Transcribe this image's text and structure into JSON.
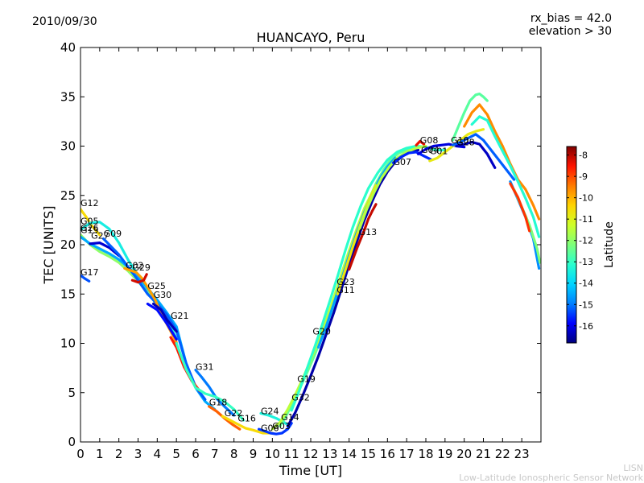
{
  "header": {
    "date": "2010/09/30",
    "rx_bias": "rx_bias = 42.0",
    "elevation": "elevation > 30"
  },
  "credit": {
    "short": "LISN",
    "long": "Low-Latitude Ionospheric Sensor Network"
  },
  "chart_data": {
    "type": "scatter",
    "title": "HUANCAYO, Peru",
    "xlabel": "Time [UT]",
    "ylabel": "TEC [UNITS]",
    "xlim": [
      0,
      24
    ],
    "ylim": [
      0,
      40
    ],
    "xticks": [
      0,
      1,
      2,
      3,
      4,
      5,
      6,
      7,
      8,
      9,
      10,
      11,
      12,
      13,
      14,
      15,
      16,
      17,
      18,
      19,
      20,
      21,
      22,
      23
    ],
    "yticks": [
      0,
      5,
      10,
      15,
      20,
      25,
      30,
      35,
      40
    ],
    "colorbar": {
      "label": "Latitude",
      "range": [
        -16.8,
        -7.6
      ],
      "ticks": [
        -8,
        -9,
        -10,
        -11,
        -12,
        -13,
        -14,
        -15,
        -16
      ],
      "colors": [
        "#00007f",
        "#0000ff",
        "#0080ff",
        "#00d4ff",
        "#29ffce",
        "#7dff7a",
        "#ceff29",
        "#ffd400",
        "#ff7b00",
        "#ff1300",
        "#7f0000"
      ]
    },
    "prn_labels": [
      {
        "prn": "G12",
        "time": 0.0,
        "tec": 23.9
      },
      {
        "prn": "G05",
        "time": 0.0,
        "tec": 22.1
      },
      {
        "prn": "G26",
        "time": 0.0,
        "tec": 21.4
      },
      {
        "prn": "G15",
        "time": 0.0,
        "tec": 21.2
      },
      {
        "prn": "G27",
        "time": 0.55,
        "tec": 20.6
      },
      {
        "prn": "G09",
        "time": 1.2,
        "tec": 20.8
      },
      {
        "prn": "G02",
        "time": 2.35,
        "tec": 17.6
      },
      {
        "prn": "G29",
        "time": 2.7,
        "tec": 17.4
      },
      {
        "prn": "G17",
        "time": 0.0,
        "tec": 16.9
      },
      {
        "prn": "G25",
        "time": 3.5,
        "tec": 15.5
      },
      {
        "prn": "G30",
        "time": 3.8,
        "tec": 14.6
      },
      {
        "prn": "G21",
        "time": 4.7,
        "tec": 12.5
      },
      {
        "prn": "G31",
        "time": 6.0,
        "tec": 7.3
      },
      {
        "prn": "G18",
        "time": 6.7,
        "tec": 3.7
      },
      {
        "prn": "G22",
        "time": 7.5,
        "tec": 2.6
      },
      {
        "prn": "G16",
        "time": 8.2,
        "tec": 2.1
      },
      {
        "prn": "G24",
        "time": 9.4,
        "tec": 2.8
      },
      {
        "prn": "G14",
        "time": 10.45,
        "tec": 2.2
      },
      {
        "prn": "G06",
        "time": 9.4,
        "tec": 1.1
      },
      {
        "prn": "G03",
        "time": 10.0,
        "tec": 1.3
      },
      {
        "prn": "G32",
        "time": 11.0,
        "tec": 4.2
      },
      {
        "prn": "G19",
        "time": 11.3,
        "tec": 6.1
      },
      {
        "prn": "G20",
        "time": 12.1,
        "tec": 10.9
      },
      {
        "prn": "G23",
        "time": 13.35,
        "tec": 15.9
      },
      {
        "prn": "G11",
        "time": 13.35,
        "tec": 15.1
      },
      {
        "prn": "G13",
        "time": 14.5,
        "tec": 21.0
      },
      {
        "prn": "G07",
        "time": 16.3,
        "tec": 28.1
      },
      {
        "prn": "G08",
        "time": 17.7,
        "tec": 30.3
      },
      {
        "prn": "G04",
        "time": 17.75,
        "tec": 29.3
      },
      {
        "prn": "G01",
        "time": 18.2,
        "tec": 29.2
      },
      {
        "prn": "G10",
        "time": 19.3,
        "tec": 30.3
      },
      {
        "prn": "G28",
        "time": 19.6,
        "tec": 30.1
      }
    ],
    "series": [
      {
        "name": "G12",
        "lat": -10.5,
        "x": [
          0.0,
          0.3,
          0.6,
          1.0
        ],
        "y": [
          23.6,
          22.8,
          21.9,
          21.0
        ]
      },
      {
        "name": "G05",
        "lat": -13.5,
        "x": [
          0.0,
          0.5,
          1.0,
          1.5,
          2.0,
          2.5,
          3.0,
          3.5,
          4.0,
          4.5,
          5.0
        ],
        "y": [
          21.5,
          22.2,
          22.3,
          21.6,
          20.2,
          18.4,
          16.9,
          15.4,
          14.0,
          12.5,
          10.5
        ]
      },
      {
        "name": "G26",
        "lat": -12.0,
        "x": [
          0.0,
          0.5,
          1.0,
          1.5,
          2.0,
          2.5,
          3.0,
          3.5,
          4.0,
          4.5,
          5.0
        ],
        "y": [
          21.0,
          20.0,
          19.3,
          18.8,
          18.2,
          17.3,
          16.3,
          15.1,
          13.9,
          12.8,
          11.4
        ]
      },
      {
        "name": "G15",
        "lat": -14.5,
        "x": [
          0.0,
          0.5,
          1.0,
          1.5,
          2.0,
          2.5,
          3.0,
          3.5,
          4.0,
          4.5,
          5.0,
          5.5,
          6.0,
          6.5,
          7.0
        ],
        "y": [
          20.8,
          20.1,
          19.6,
          19.1,
          18.5,
          17.7,
          16.8,
          15.6,
          14.4,
          13.1,
          11.7,
          8.0,
          5.5,
          4.1,
          3.3
        ]
      },
      {
        "name": "G27",
        "lat": -16.2,
        "x": [
          0.5,
          1.0,
          1.5,
          2.0
        ],
        "y": [
          20.1,
          20.2,
          19.7,
          18.9
        ]
      },
      {
        "name": "G09",
        "lat": -15.2,
        "x": [
          1.2,
          1.6,
          2.0,
          2.5,
          3.0,
          3.5,
          4.0,
          4.5,
          5.0,
          5.5,
          6.0,
          6.5
        ],
        "y": [
          20.6,
          19.8,
          19.0,
          17.7,
          16.4,
          15.0,
          14.0,
          12.9,
          11.3,
          8.0,
          5.6,
          4.3
        ]
      },
      {
        "name": "G02",
        "lat": -9.8,
        "x": [
          2.3,
          2.6,
          2.9,
          3.2,
          3.5,
          3.9,
          4.2,
          4.6,
          5.0
        ],
        "y": [
          17.6,
          17.4,
          17.2,
          16.6,
          15.7,
          14.4,
          13.0,
          11.6,
          10.1
        ]
      },
      {
        "name": "G29",
        "lat": -8.2,
        "x": [
          2.7,
          3.0,
          3.3,
          3.45
        ],
        "y": [
          16.4,
          16.2,
          16.4,
          17.0
        ]
      },
      {
        "name": "G17",
        "lat": -15.3,
        "x": [
          0.0,
          0.2,
          0.45
        ],
        "y": [
          16.9,
          16.6,
          16.3
        ]
      },
      {
        "name": "G25",
        "lat": -15.8,
        "x": [
          3.5,
          4.0,
          4.5,
          5.0
        ],
        "y": [
          14.0,
          13.4,
          12.0,
          10.4
        ]
      },
      {
        "name": "G30",
        "lat": -16.4,
        "x": [
          3.8,
          4.2,
          4.5,
          5.0
        ],
        "y": [
          14.0,
          13.4,
          12.4,
          11.2
        ]
      },
      {
        "name": "G21",
        "lat": -8.6,
        "x": [
          4.7,
          5.0,
          5.4,
          5.8,
          6.2
        ],
        "y": [
          10.6,
          9.6,
          7.6,
          6.2,
          5.2
        ]
      },
      {
        "name": "G31",
        "lat": -15.0,
        "x": [
          6.0,
          6.3,
          6.7,
          7.1,
          7.5,
          8.0
        ],
        "y": [
          7.3,
          6.6,
          5.6,
          4.4,
          3.6,
          2.7
        ]
      },
      {
        "name": "G18",
        "lat": -13.0,
        "x": [
          5.0,
          5.5,
          6.0,
          6.5,
          7.0,
          7.5,
          8.0,
          8.5
        ],
        "y": [
          10.0,
          7.4,
          5.5,
          4.9,
          4.6,
          4.1,
          3.3,
          2.2
        ]
      },
      {
        "name": "G22",
        "lat": -9.2,
        "x": [
          6.7,
          7.1,
          7.5,
          7.9,
          8.3
        ],
        "y": [
          3.6,
          3.1,
          2.4,
          1.8,
          1.3
        ]
      },
      {
        "name": "G16",
        "lat": -10.5,
        "x": [
          7.4,
          7.9,
          8.2,
          8.6,
          9.0,
          9.5,
          10.0
        ],
        "y": [
          2.6,
          2.1,
          1.8,
          1.4,
          1.2,
          0.9,
          0.9
        ]
      },
      {
        "name": "G24",
        "lat": -13.4,
        "x": [
          9.4,
          9.8,
          10.2,
          10.6,
          10.9
        ],
        "y": [
          2.9,
          2.7,
          2.4,
          2.0,
          1.6
        ]
      },
      {
        "name": "G14",
        "lat": -12.5,
        "x": [
          10.4,
          10.7,
          11.0,
          11.4,
          11.8,
          12.2,
          12.6,
          13.0,
          13.4,
          13.8,
          14.2,
          14.6,
          15.0,
          15.4,
          15.8,
          16.2,
          16.6,
          17.0,
          17.5
        ],
        "y": [
          1.6,
          2.6,
          3.7,
          5.3,
          7.0,
          8.8,
          10.8,
          12.8,
          15.0,
          17.5,
          20.0,
          22.4,
          24.4,
          26.2,
          27.6,
          28.7,
          29.3,
          29.6,
          29.8
        ]
      },
      {
        "name": "G06",
        "lat": -15.5,
        "x": [
          9.3,
          9.6,
          9.9,
          10.2,
          10.5,
          10.8,
          11.0
        ],
        "y": [
          1.3,
          1.1,
          0.9,
          0.8,
          0.9,
          1.3,
          1.9
        ]
      },
      {
        "name": "G03",
        "lat": -11.5,
        "x": [
          10.0,
          10.4,
          10.8,
          11.2,
          11.6,
          12.0,
          12.4,
          12.8,
          13.2,
          13.6,
          14.0,
          14.4,
          14.8,
          15.2,
          15.6,
          16.0
        ],
        "y": [
          1.3,
          2.0,
          3.3,
          4.8,
          6.5,
          8.3,
          10.3,
          12.3,
          14.6,
          17.0,
          19.4,
          21.6,
          23.7,
          25.3,
          26.7,
          27.8
        ]
      },
      {
        "name": "G32",
        "lat": -16.5,
        "x": [
          10.8,
          11.2,
          11.6,
          12.0,
          12.4,
          12.8,
          13.2,
          13.6,
          14.0,
          14.4,
          14.8,
          15.2,
          15.6,
          16.0,
          16.4,
          16.8,
          17.2,
          17.6
        ],
        "y": [
          1.6,
          3.0,
          4.8,
          6.7,
          8.7,
          10.9,
          13.1,
          15.5,
          18.0,
          20.3,
          22.5,
          24.4,
          26.1,
          27.4,
          28.4,
          29.0,
          29.4,
          29.6
        ]
      },
      {
        "name": "G19",
        "lat": -8.1,
        "x": [
          14.0,
          14.4,
          14.8,
          15.0,
          15.2,
          15.4
        ],
        "y": [
          17.5,
          19.6,
          21.5,
          22.6,
          23.4,
          24.1
        ]
      },
      {
        "name": "G20",
        "lat": -13.1,
        "x": [
          11.0,
          11.4,
          11.8,
          12.2,
          12.6,
          13.0,
          13.4,
          13.8,
          14.2,
          14.6,
          15.0,
          15.5,
          16.0,
          16.5,
          17.0,
          17.5,
          18.0,
          18.5,
          19.0
        ],
        "y": [
          3.2,
          5.2,
          7.4,
          9.6,
          11.9,
          14.3,
          16.8,
          19.4,
          21.8,
          23.9,
          25.7,
          27.3,
          28.6,
          29.4,
          29.8,
          30.0,
          29.9,
          29.6,
          29.6
        ]
      },
      {
        "name": "G23",
        "lat": -14.6,
        "x": [
          12.4,
          12.8,
          13.2,
          13.6,
          14.0,
          14.4,
          14.8,
          15.2,
          15.6,
          16.0,
          16.4
        ],
        "y": [
          9.6,
          11.7,
          14.0,
          16.4,
          18.9,
          21.2,
          23.3,
          25.1,
          26.7,
          27.9,
          28.8
        ]
      },
      {
        "name": "G11",
        "lat": -10.7,
        "x": [
          13.4,
          13.8,
          14.2,
          14.6,
          15.0,
          15.4
        ],
        "y": [
          15.0,
          17.4,
          19.8,
          22.1,
          24.2,
          26.0
        ]
      },
      {
        "name": "G13",
        "lat": -11.6,
        "x": [
          14.5,
          14.9,
          15.3,
          15.7,
          16.1,
          16.5,
          17.0,
          17.5,
          18.0
        ],
        "y": [
          21.4,
          23.5,
          25.3,
          26.8,
          27.9,
          28.8,
          29.4,
          29.8,
          30.0
        ]
      },
      {
        "name": "G07",
        "lat": -15.6,
        "x": [
          16.3,
          16.7,
          17.1,
          17.5,
          17.9,
          18.3
        ],
        "y": [
          28.3,
          28.9,
          29.3,
          29.4,
          29.0,
          28.6
        ]
      },
      {
        "name": "G08",
        "lat": -8.4,
        "x": [
          17.5,
          17.7,
          17.9
        ],
        "y": [
          30.1,
          30.5,
          30.2
        ]
      },
      {
        "name": "G04",
        "lat": -16.1,
        "x": [
          17.6,
          18.0,
          18.4,
          18.8,
          19.2,
          19.6,
          20.0
        ],
        "y": [
          29.2,
          29.7,
          30.0,
          30.1,
          30.2,
          30.0,
          29.9
        ]
      },
      {
        "name": "G01",
        "lat": -10.8,
        "x": [
          18.2,
          18.6,
          19.0,
          19.4,
          19.8,
          20.2,
          20.6,
          21.0
        ],
        "y": [
          28.5,
          28.8,
          29.4,
          30.0,
          30.6,
          31.2,
          31.5,
          31.7
        ]
      },
      {
        "name": "G10",
        "lat": -12.6,
        "x": [
          19.4,
          19.7,
          20.0,
          20.3,
          20.6,
          20.8,
          21.0,
          21.2
        ],
        "y": [
          30.6,
          32.0,
          33.4,
          34.6,
          35.2,
          35.3,
          35.0,
          34.6
        ]
      },
      {
        "name": "G28",
        "lat": -15.2,
        "x": [
          19.4,
          19.8,
          20.2,
          20.6,
          21.0,
          21.4,
          21.8,
          22.2,
          22.6
        ],
        "y": [
          30.1,
          30.4,
          30.8,
          31.2,
          30.6,
          29.6,
          28.6,
          27.6,
          26.6
        ]
      },
      {
        "name": "G28b",
        "lat": -16.3,
        "x": [
          19.6,
          20.0,
          20.4,
          20.8,
          21.2,
          21.6
        ],
        "y": [
          30.0,
          30.2,
          30.4,
          30.2,
          29.2,
          27.8
        ]
      },
      {
        "name": "G10b",
        "lat": -9.6,
        "x": [
          20.0,
          20.4,
          20.8,
          21.2,
          21.6,
          22.0,
          22.4,
          22.8,
          23.2,
          23.6,
          23.9
        ],
        "y": [
          32.0,
          33.4,
          34.2,
          33.2,
          31.5,
          30.0,
          28.2,
          26.6,
          25.6,
          24.0,
          22.6
        ]
      },
      {
        "name": "G01b",
        "lat": -13.2,
        "x": [
          20.4,
          20.8,
          21.2,
          21.6,
          22.0,
          22.4,
          22.8,
          23.2,
          23.6,
          23.9
        ],
        "y": [
          32.2,
          33.0,
          32.6,
          31.0,
          29.5,
          28.0,
          26.4,
          24.7,
          22.8,
          20.8
        ]
      },
      {
        "name": "G04b",
        "lat": -14.8,
        "x": [
          22.4,
          22.8,
          23.2,
          23.6,
          23.9
        ],
        "y": [
          26.4,
          24.6,
          22.8,
          20.6,
          17.6
        ]
      },
      {
        "name": "G13b",
        "lat": -12.2,
        "x": [
          22.6,
          23.0,
          23.4,
          23.8,
          23.95
        ],
        "y": [
          25.6,
          23.8,
          22.0,
          19.6,
          18.2
        ]
      },
      {
        "name": "G07b",
        "lat": -8.8,
        "x": [
          22.4,
          22.8,
          23.2,
          23.4
        ],
        "y": [
          26.2,
          24.8,
          22.8,
          21.4
        ]
      }
    ]
  }
}
